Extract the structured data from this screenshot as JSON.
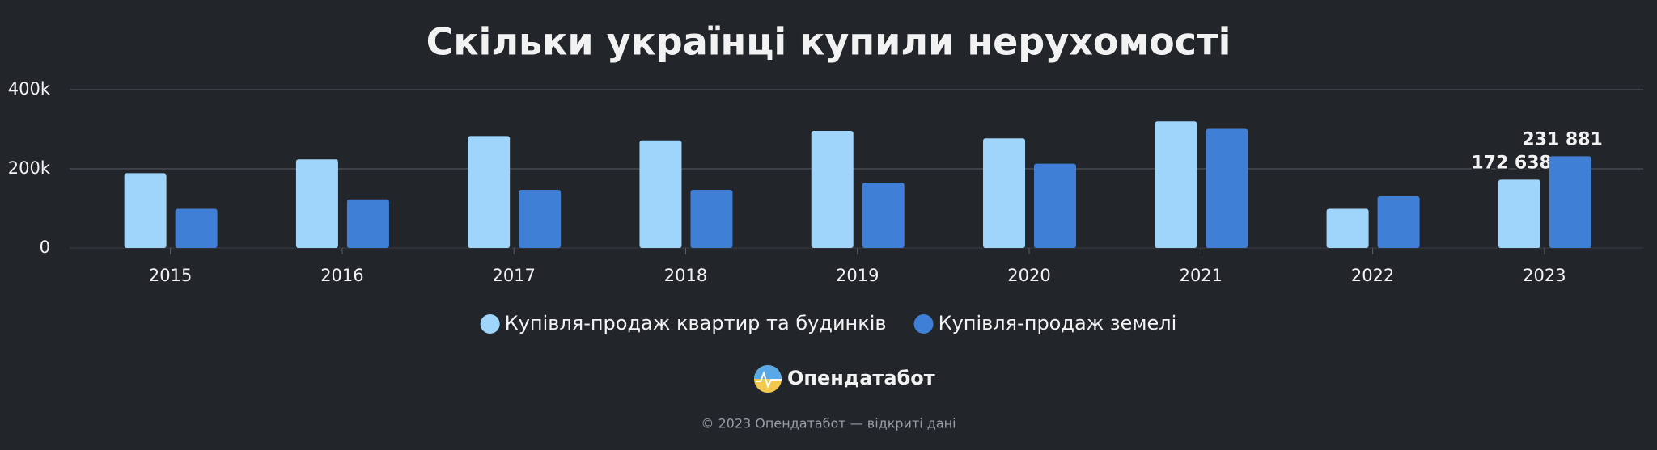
{
  "chart_data": {
    "type": "bar",
    "title": "Скільки українці купили нерухомості",
    "categories": [
      "2015",
      "2016",
      "2017",
      "2018",
      "2019",
      "2020",
      "2021",
      "2022",
      "2023"
    ],
    "series": [
      {
        "name": "Купівля-продаж квартир та будинків",
        "color": "#9fd5fb",
        "values": [
          189000,
          224000,
          283000,
          272000,
          296000,
          277000,
          320000,
          99000,
          172638
        ],
        "value_labels": [
          null,
          null,
          null,
          null,
          null,
          null,
          null,
          null,
          "172 638"
        ]
      },
      {
        "name": "Купівля-продаж земелі",
        "color": "#3f7fd6",
        "values": [
          99000,
          123000,
          147000,
          147000,
          165000,
          213000,
          301000,
          131000,
          231881
        ],
        "value_labels": [
          null,
          null,
          null,
          null,
          null,
          null,
          null,
          null,
          "231 881"
        ]
      }
    ],
    "ylim": [
      0,
      400000
    ],
    "yticks": [
      0,
      {
        "value": 200000,
        "label": "200k"
      },
      {
        "value": 400000,
        "label": "400k"
      }
    ],
    "grid": true,
    "legend": "bottom"
  },
  "brand": "Опендатабот",
  "footer": "© 2023 Опендатабот — відкриті дані"
}
